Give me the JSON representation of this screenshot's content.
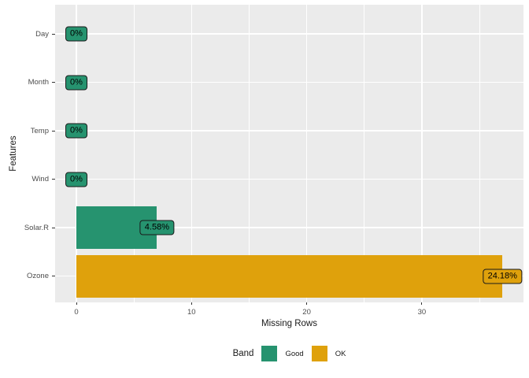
{
  "chart_data": {
    "type": "bar",
    "orientation": "horizontal",
    "xlabel": "Missing Rows",
    "ylabel": "Features",
    "categories_top_to_bottom": [
      "Day",
      "Month",
      "Temp",
      "Wind",
      "Solar.R",
      "Ozone"
    ],
    "rows": [
      {
        "feature": "Day",
        "missing_rows": 0,
        "pct_label": "0%",
        "band": "Good"
      },
      {
        "feature": "Month",
        "missing_rows": 0,
        "pct_label": "0%",
        "band": "Good"
      },
      {
        "feature": "Temp",
        "missing_rows": 0,
        "pct_label": "0%",
        "band": "Good"
      },
      {
        "feature": "Wind",
        "missing_rows": 0,
        "pct_label": "0%",
        "band": "Good"
      },
      {
        "feature": "Solar.R",
        "missing_rows": 7,
        "pct_label": "4.58%",
        "band": "Good"
      },
      {
        "feature": "Ozone",
        "missing_rows": 37,
        "pct_label": "24.18%",
        "band": "OK"
      }
    ],
    "x_ticks": [
      0,
      10,
      20,
      30
    ],
    "x_minor_ticks": [
      5,
      15,
      25,
      35
    ],
    "xlim_data": [
      0,
      37
    ],
    "grid": true,
    "legend": {
      "title": "Band",
      "position": "bottom",
      "entries": [
        {
          "label": "Good",
          "color": "#26936F"
        },
        {
          "label": "OK",
          "color": "#DFA10C"
        }
      ]
    },
    "colors": {
      "Good": "#26936F",
      "OK": "#DFA10C",
      "panel_bg": "#EBEBEB",
      "gridline": "#FFFFFF",
      "tick_text": "#4D4D4D",
      "axis_title_text": "#1a1a1a"
    }
  }
}
